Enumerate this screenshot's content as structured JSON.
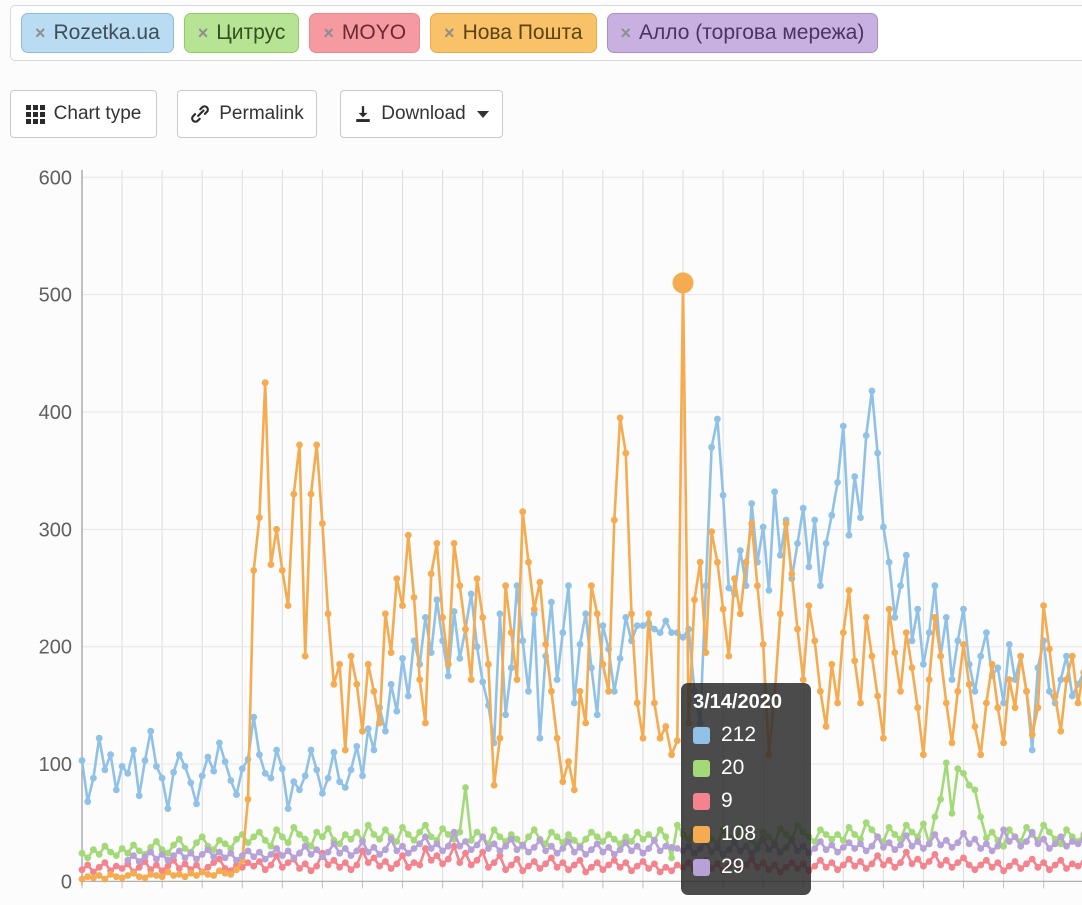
{
  "filter_chips": {
    "items": [
      {
        "label": "Rozetka.ua",
        "remove_icon": "×",
        "bg": "#b9dcf2",
        "border": "#8fbcdd",
        "text_color": "#3d4e59"
      },
      {
        "label": "Цитрус",
        "remove_icon": "×",
        "bg": "#b7e494",
        "border": "#93cb63",
        "text_color": "#33511d"
      },
      {
        "label": "MOYO",
        "remove_icon": "×",
        "bg": "#f69aa2",
        "border": "#ee8690",
        "text_color": "#6e2831"
      },
      {
        "label": "Нова Пошта",
        "remove_icon": "×",
        "bg": "#f9c168",
        "border": "#eda945",
        "text_color": "#5c4414"
      },
      {
        "label": "Алло (торгова мережа)",
        "remove_icon": "×",
        "bg": "#c8b1e0",
        "border": "#ab8ecb",
        "text_color": "#493465"
      }
    ]
  },
  "toolbar": {
    "chart_type_label": "Chart type",
    "permalink_label": "Permalink",
    "download_label": "Download"
  },
  "tooltip": {
    "date": "3/14/2020",
    "rows": [
      {
        "series": "Rozetka.ua",
        "value": "212",
        "color": "#90c1e7"
      },
      {
        "series": "Цитрус",
        "value": "20",
        "color": "#a3d977"
      },
      {
        "series": "MOYO",
        "value": "9",
        "color": "#f4838e"
      },
      {
        "series": "Нова Пошта",
        "value": "108",
        "color": "#f5ab4f"
      },
      {
        "series": "Алло (торгова мережа)",
        "value": "29",
        "color": "#b7a2d8"
      }
    ]
  },
  "chart_data": {
    "type": "line",
    "title": "",
    "xlabel": "",
    "ylabel": "",
    "ylim": [
      0,
      600
    ],
    "y_ticks": [
      600,
      500,
      400,
      300,
      200,
      100,
      0
    ],
    "grid": "on",
    "x_gridline_interval_days": 7,
    "x_tick_labels_visible": false,
    "legend_position": "none",
    "hover_date": "3/14/2020",
    "hover_values": {
      "Rozetka.ua": 212,
      "Цитрус": 20,
      "MOYO": 9,
      "Нова Пошта": 108,
      "Алло (торгова мережа)": 29
    },
    "highlight_point": {
      "series": "Нова Пошта",
      "index": 105,
      "value": 510
    },
    "series": [
      {
        "name": "Rozetka.ua",
        "color": "#90c1e7",
        "values": [
          103,
          68,
          88,
          122,
          95,
          108,
          78,
          98,
          92,
          112,
          73,
          103,
          128,
          98,
          88,
          62,
          93,
          108,
          98,
          84,
          66,
          90,
          106,
          94,
          118,
          102,
          86,
          74,
          96,
          104,
          140,
          108,
          92,
          88,
          112,
          96,
          62,
          85,
          78,
          90,
          112,
          95,
          75,
          88,
          110,
          85,
          80,
          95,
          115,
          90,
          130,
          112,
          148,
          128,
          168,
          145,
          190,
          158,
          205,
          185,
          225,
          195,
          240,
          205,
          175,
          230,
          190,
          215,
          245,
          200,
          170,
          150,
          118,
          228,
          142,
          182,
          252,
          205,
          162,
          228,
          122,
          192,
          238,
          172,
          212,
          252,
          152,
          202,
          228,
          182,
          142,
          218,
          198,
          162,
          190,
          225,
          205,
          218,
          218,
          220,
          215,
          212,
          222,
          212,
          212,
          208,
          215,
          162,
          135,
          252,
          370,
          394,
          329,
          250,
          245,
          282,
          252,
          322,
          272,
          302,
          248,
          332,
          278,
          308,
          258,
          288,
          318,
          268,
          308,
          252,
          288,
          312,
          340,
          388,
          295,
          345,
          310,
          380,
          418,
          365,
          302,
          272,
          225,
          252,
          278,
          205,
          232,
          185,
          212,
          252,
          192,
          225,
          172,
          205,
          232,
          185,
          162,
          192,
          212,
          175,
          182,
          152,
          202,
          172,
          192,
          162,
          112,
          182,
          205,
          162,
          152,
          172,
          192,
          158,
          168,
          178
        ]
      },
      {
        "name": "Цитрус",
        "color": "#a3d977",
        "values": [
          24,
          20,
          27,
          23,
          30,
          25,
          22,
          28,
          24,
          31,
          26,
          23,
          29,
          34,
          27,
          24,
          31,
          36,
          28,
          25,
          33,
          38,
          30,
          27,
          35,
          32,
          28,
          36,
          40,
          33,
          38,
          42,
          35,
          30,
          44,
          38,
          33,
          46,
          40,
          36,
          30,
          42,
          38,
          45,
          35,
          32,
          40,
          36,
          42,
          35,
          48,
          40,
          36,
          44,
          38,
          34,
          46,
          40,
          35,
          42,
          48,
          38,
          35,
          45,
          40,
          36,
          42,
          80,
          35,
          42,
          38,
          32,
          44,
          38,
          34,
          40,
          36,
          30,
          38,
          44,
          36,
          32,
          42,
          38,
          33,
          40,
          35,
          30,
          36,
          42,
          38,
          34,
          40,
          36,
          32,
          38,
          34,
          42,
          36,
          40,
          35,
          44,
          38,
          20,
          48,
          40,
          36,
          44,
          38,
          42,
          36,
          32,
          44,
          38,
          34,
          46,
          40,
          35,
          30,
          42,
          38,
          33,
          45,
          40,
          36,
          48,
          42,
          38,
          34,
          44,
          40,
          36,
          40,
          35,
          46,
          40,
          36,
          50,
          44,
          38,
          34,
          46,
          40,
          36,
          48,
          42,
          38,
          49,
          32,
          55,
          70,
          101,
          58,
          96,
          92,
          82,
          78,
          55,
          37,
          42,
          35,
          30,
          44,
          38,
          34,
          46,
          40,
          35,
          48,
          42,
          36,
          32,
          44,
          38,
          34,
          40
        ]
      },
      {
        "name": "MOYO",
        "color": "#f4838e",
        "values": [
          10,
          14,
          8,
          12,
          16,
          9,
          13,
          11,
          15,
          8,
          12,
          17,
          10,
          14,
          9,
          13,
          18,
          11,
          15,
          10,
          14,
          8,
          12,
          16,
          19,
          11,
          9,
          14,
          12,
          16,
          13,
          17,
          10,
          14,
          22,
          12,
          16,
          19,
          11,
          15,
          9,
          13,
          24,
          14,
          18,
          12,
          16,
          10,
          14,
          26,
          16,
          20,
          13,
          17,
          11,
          15,
          22,
          12,
          16,
          14,
          28,
          18,
          22,
          15,
          19,
          30,
          16,
          24,
          14,
          18,
          25,
          12,
          16,
          22,
          10,
          14,
          19,
          9,
          13,
          17,
          11,
          15,
          20,
          12,
          16,
          10,
          14,
          18,
          8,
          12,
          16,
          10,
          14,
          18,
          12,
          16,
          9,
          13,
          17,
          11,
          15,
          8,
          12,
          9,
          14,
          12,
          16,
          10,
          14,
          18,
          11,
          15,
          9,
          13,
          17,
          10,
          14,
          19,
          12,
          16,
          10,
          14,
          8,
          12,
          16,
          11,
          15,
          9,
          13,
          18,
          12,
          16,
          10,
          14,
          19,
          13,
          17,
          11,
          15,
          22,
          14,
          18,
          12,
          16,
          25,
          15,
          19,
          13,
          17,
          23,
          14,
          18,
          12,
          16,
          20,
          14,
          10,
          14,
          18,
          12,
          16,
          9,
          13,
          17,
          11,
          15,
          19,
          12,
          16,
          10,
          14,
          18,
          11,
          15,
          13,
          16
        ]
      },
      {
        "name": "Нова Пошта",
        "color": "#f5ab4f",
        "values": [
          2,
          4,
          3,
          5,
          2,
          6,
          4,
          3,
          5,
          7,
          4,
          3,
          6,
          5,
          4,
          8,
          5,
          6,
          4,
          7,
          5,
          8,
          6,
          5,
          9,
          7,
          6,
          10,
          18,
          70,
          265,
          310,
          425,
          270,
          300,
          265,
          235,
          330,
          372,
          192,
          330,
          372,
          305,
          228,
          168,
          185,
          112,
          192,
          168,
          128,
          185,
          162,
          135,
          228,
          195,
          258,
          235,
          295,
          242,
          172,
          135,
          262,
          288,
          225,
          185,
          288,
          252,
          215,
          172,
          258,
          225,
          185,
          82,
          122,
          252,
          212,
          172,
          315,
          272,
          232,
          255,
          202,
          162,
          122,
          85,
          102,
          78,
          162,
          135,
          252,
          228,
          185,
          162,
          308,
          395,
          365,
          228,
          152,
          122,
          228,
          152,
          122,
          132,
          108,
          120,
          510,
          135,
          240,
          272,
          195,
          298,
          272,
          232,
          192,
          258,
          228,
          272,
          305,
          252,
          202,
          108,
          158,
          228,
          305,
          262,
          215,
          172,
          235,
          205,
          162,
          132,
          185,
          152,
          212,
          248,
          188,
          152,
          225,
          192,
          158,
          122,
          232,
          195,
          162,
          212,
          182,
          148,
          108,
          172,
          225,
          192,
          152,
          118,
          162,
          202,
          168,
          132,
          108,
          152,
          185,
          148,
          118,
          172,
          148,
          192,
          162,
          125,
          148,
          235,
          198,
          158,
          128,
          172,
          192,
          152,
          178
        ]
      },
      {
        "name": "Алло (торгова мережа)",
        "color": "#b7a2d8",
        "values": [
          null,
          null,
          null,
          null,
          null,
          null,
          null,
          null,
          18,
          22,
          17,
          21,
          25,
          19,
          23,
          18,
          22,
          26,
          20,
          24,
          19,
          23,
          27,
          21,
          25,
          20,
          24,
          18,
          22,
          26,
          21,
          25,
          19,
          23,
          28,
          22,
          26,
          20,
          24,
          30,
          23,
          27,
          21,
          25,
          32,
          24,
          28,
          22,
          26,
          34,
          25,
          29,
          23,
          27,
          36,
          26,
          30,
          24,
          28,
          32,
          38,
          28,
          32,
          26,
          30,
          42,
          30,
          34,
          27,
          31,
          38,
          28,
          32,
          26,
          30,
          36,
          27,
          31,
          25,
          29,
          35,
          26,
          30,
          24,
          28,
          34,
          25,
          29,
          23,
          27,
          32,
          25,
          29,
          23,
          27,
          33,
          26,
          30,
          24,
          28,
          35,
          26,
          30,
          29,
          28,
          26,
          30,
          24,
          28,
          34,
          25,
          29,
          23,
          27,
          33,
          26,
          30,
          24,
          28,
          36,
          27,
          31,
          25,
          29,
          35,
          26,
          30,
          24,
          28,
          34,
          27,
          31,
          25,
          29,
          33,
          28,
          32,
          26,
          30,
          38,
          29,
          33,
          27,
          31,
          39,
          30,
          34,
          28,
          32,
          40,
          31,
          35,
          29,
          33,
          41,
          32,
          36,
          28,
          32,
          26,
          30,
          44,
          34,
          38,
          30,
          34,
          42,
          32,
          36,
          28,
          32,
          38,
          30,
          34,
          32,
          35
        ]
      }
    ]
  }
}
